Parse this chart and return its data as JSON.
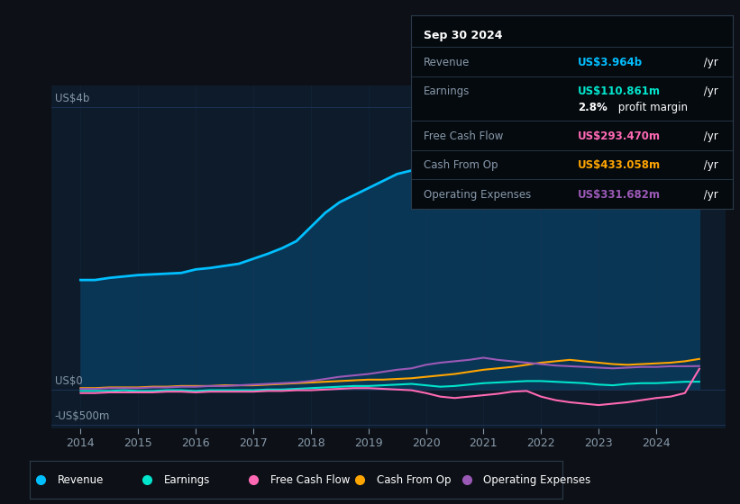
{
  "bg_color": "#0d1117",
  "plot_bg_color": "#0d1b2a",
  "grid_color": "#1e3050",
  "text_color": "#8899aa",
  "years_x": [
    2014,
    2014.25,
    2014.5,
    2014.75,
    2015,
    2015.25,
    2015.5,
    2015.75,
    2016,
    2016.25,
    2016.5,
    2016.75,
    2017,
    2017.25,
    2017.5,
    2017.75,
    2018,
    2018.25,
    2018.5,
    2018.75,
    2019,
    2019.25,
    2019.5,
    2019.75,
    2020,
    2020.25,
    2020.5,
    2020.75,
    2021,
    2021.25,
    2021.5,
    2021.75,
    2022,
    2022.25,
    2022.5,
    2022.75,
    2023,
    2023.25,
    2023.5,
    2023.75,
    2024,
    2024.25,
    2024.5,
    2024.75
  ],
  "revenue": [
    1.55,
    1.55,
    1.58,
    1.6,
    1.62,
    1.63,
    1.64,
    1.65,
    1.7,
    1.72,
    1.75,
    1.78,
    1.85,
    1.92,
    2.0,
    2.1,
    2.3,
    2.5,
    2.65,
    2.75,
    2.85,
    2.95,
    3.05,
    3.1,
    2.9,
    2.6,
    2.75,
    2.9,
    3.05,
    3.2,
    3.3,
    3.35,
    3.4,
    3.5,
    3.55,
    3.45,
    3.3,
    3.2,
    3.1,
    3.05,
    3.15,
    3.4,
    3.7,
    3.964
  ],
  "earnings": [
    -0.02,
    -0.02,
    -0.02,
    -0.01,
    -0.02,
    -0.02,
    -0.01,
    -0.01,
    -0.02,
    -0.01,
    -0.01,
    -0.01,
    -0.01,
    0.0,
    0.0,
    0.01,
    0.02,
    0.03,
    0.04,
    0.05,
    0.05,
    0.06,
    0.07,
    0.08,
    0.06,
    0.04,
    0.05,
    0.07,
    0.09,
    0.1,
    0.11,
    0.12,
    0.12,
    0.11,
    0.1,
    0.09,
    0.07,
    0.06,
    0.08,
    0.09,
    0.09,
    0.1,
    0.11,
    0.111
  ],
  "free_cash_flow": [
    -0.05,
    -0.05,
    -0.04,
    -0.04,
    -0.04,
    -0.04,
    -0.03,
    -0.03,
    -0.04,
    -0.03,
    -0.03,
    -0.03,
    -0.03,
    -0.02,
    -0.02,
    -0.01,
    -0.01,
    0.0,
    0.01,
    0.02,
    0.02,
    0.01,
    0.0,
    -0.01,
    -0.05,
    -0.1,
    -0.12,
    -0.1,
    -0.08,
    -0.06,
    -0.03,
    -0.02,
    -0.1,
    -0.15,
    -0.18,
    -0.2,
    -0.22,
    -0.2,
    -0.18,
    -0.15,
    -0.12,
    -0.1,
    -0.05,
    0.293
  ],
  "cash_from_op": [
    0.02,
    0.02,
    0.03,
    0.03,
    0.03,
    0.04,
    0.04,
    0.05,
    0.05,
    0.05,
    0.06,
    0.06,
    0.06,
    0.07,
    0.08,
    0.09,
    0.1,
    0.11,
    0.12,
    0.13,
    0.14,
    0.14,
    0.15,
    0.16,
    0.18,
    0.2,
    0.22,
    0.25,
    0.28,
    0.3,
    0.32,
    0.35,
    0.38,
    0.4,
    0.42,
    0.4,
    0.38,
    0.36,
    0.35,
    0.36,
    0.37,
    0.38,
    0.4,
    0.433
  ],
  "operating_expenses": [
    0.01,
    0.01,
    0.02,
    0.02,
    0.02,
    0.03,
    0.03,
    0.04,
    0.04,
    0.05,
    0.05,
    0.06,
    0.07,
    0.08,
    0.09,
    0.1,
    0.12,
    0.15,
    0.18,
    0.2,
    0.22,
    0.25,
    0.28,
    0.3,
    0.35,
    0.38,
    0.4,
    0.42,
    0.45,
    0.42,
    0.4,
    0.38,
    0.36,
    0.34,
    0.33,
    0.32,
    0.31,
    0.3,
    0.31,
    0.32,
    0.32,
    0.33,
    0.33,
    0.332
  ],
  "revenue_color": "#00bfff",
  "earnings_color": "#00e5cc",
  "free_cash_flow_color": "#ff69b4",
  "cash_from_op_color": "#ffa500",
  "operating_expenses_color": "#9b59b6",
  "revenue_fill_color": "#0a3a5a",
  "ylim": [
    -0.55,
    4.3
  ],
  "xlim": [
    2013.5,
    2025.2
  ],
  "x_ticks": [
    2014,
    2015,
    2016,
    2017,
    2018,
    2019,
    2020,
    2021,
    2022,
    2023,
    2024
  ],
  "tooltip_date": "Sep 30 2024",
  "tooltip_revenue_label": "Revenue",
  "tooltip_revenue_value": "US$3.964b",
  "tooltip_revenue_color": "#00bfff",
  "tooltip_earnings_label": "Earnings",
  "tooltip_earnings_value": "US$110.861m",
  "tooltip_earnings_color": "#00e5cc",
  "tooltip_fcf_label": "Free Cash Flow",
  "tooltip_fcf_value": "US$293.470m",
  "tooltip_fcf_color": "#ff69b4",
  "tooltip_cashop_label": "Cash From Op",
  "tooltip_cashop_value": "US$433.058m",
  "tooltip_cashop_color": "#ffa500",
  "tooltip_opex_label": "Operating Expenses",
  "tooltip_opex_value": "US$331.682m",
  "tooltip_opex_color": "#9b59b6",
  "legend_labels": [
    "Revenue",
    "Earnings",
    "Free Cash Flow",
    "Cash From Op",
    "Operating Expenses"
  ],
  "legend_colors": [
    "#00bfff",
    "#00e5cc",
    "#ff69b4",
    "#ffa500",
    "#9b59b6"
  ]
}
